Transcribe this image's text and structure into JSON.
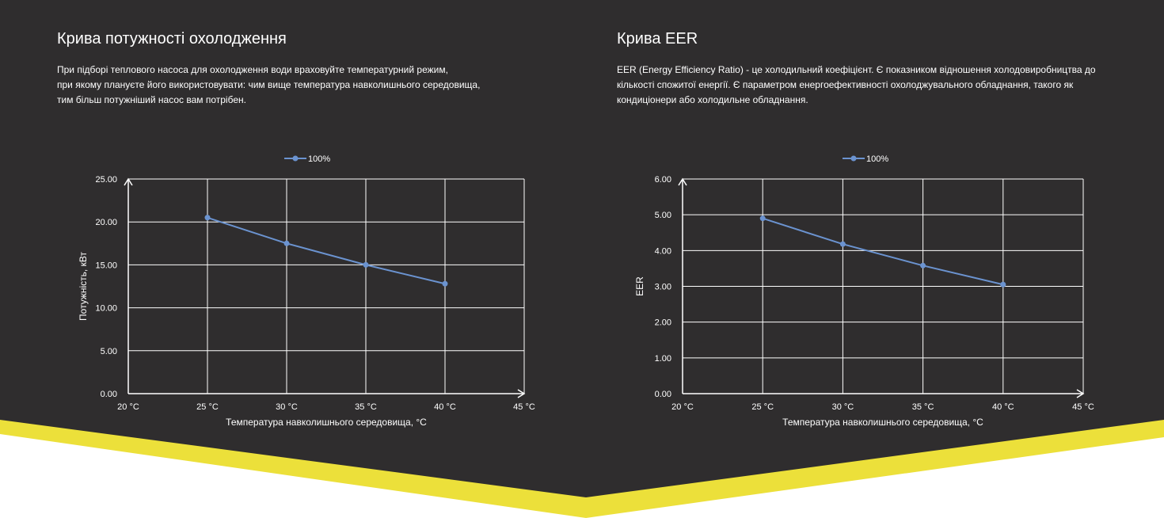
{
  "colors": {
    "background": "#2f2d2e",
    "accent": "#ece03a",
    "page": "#ffffff",
    "series": "#6b93d0",
    "grid": "#ffffff",
    "text": "#ffffff"
  },
  "panels": [
    {
      "title": "Крива потужності охолодження",
      "description_lines": [
        "При підборі теплового насоса для охолодження води враховуйте температурний режим,",
        "при якому плануєте його використовувати: чим вище температура навколишнього середовища,",
        "тим більш потужніший насос вам потрібен."
      ]
    },
    {
      "title": "Крива EER",
      "description_lines": [
        "EER (Energy Efficiency Ratio) - це холодильний коефіцієнт. Є показником відношення холодовиробництва до",
        "кількості спожитої енергії. Є параметром енергоефективності охолоджувального обладнання, такого як",
        "кондиціонери або холодильне обладнання."
      ]
    }
  ],
  "chart_data": [
    {
      "type": "line",
      "categories": [
        "20 °C",
        "25 °C",
        "30 °C",
        "35 °C",
        "40 °C",
        "45 °C"
      ],
      "series": [
        {
          "name": "100%",
          "points": [
            {
              "x": "25 °C",
              "y": 20.5
            },
            {
              "x": "30 °C",
              "y": 17.5
            },
            {
              "x": "35 °C",
              "y": 15.0
            },
            {
              "x": "40 °C",
              "y": 12.8
            }
          ]
        }
      ],
      "xlabel": "Температура навколишнього середовища, °C",
      "ylabel": "Потужність, кВт",
      "ylim": [
        0,
        25
      ],
      "yticks": [
        "0.00",
        "5.00",
        "10.00",
        "15.00",
        "20.00",
        "25.00"
      ],
      "grid": true,
      "legend": "top-center"
    },
    {
      "type": "line",
      "categories": [
        "20 °C",
        "25 °C",
        "30 °C",
        "35 °C",
        "40 °C",
        "45 °C"
      ],
      "series": [
        {
          "name": "100%",
          "points": [
            {
              "x": "25 °C",
              "y": 4.9
            },
            {
              "x": "30 °C",
              "y": 4.18
            },
            {
              "x": "35 °C",
              "y": 3.58
            },
            {
              "x": "40 °C",
              "y": 3.05
            }
          ]
        }
      ],
      "xlabel": "Температура навколишнього середовища, °C",
      "ylabel": "EER",
      "ylim": [
        0,
        6
      ],
      "yticks": [
        "0.00",
        "1.00",
        "2.00",
        "3.00",
        "4.00",
        "5.00",
        "6.00"
      ],
      "grid": true,
      "legend": "top-center"
    }
  ]
}
